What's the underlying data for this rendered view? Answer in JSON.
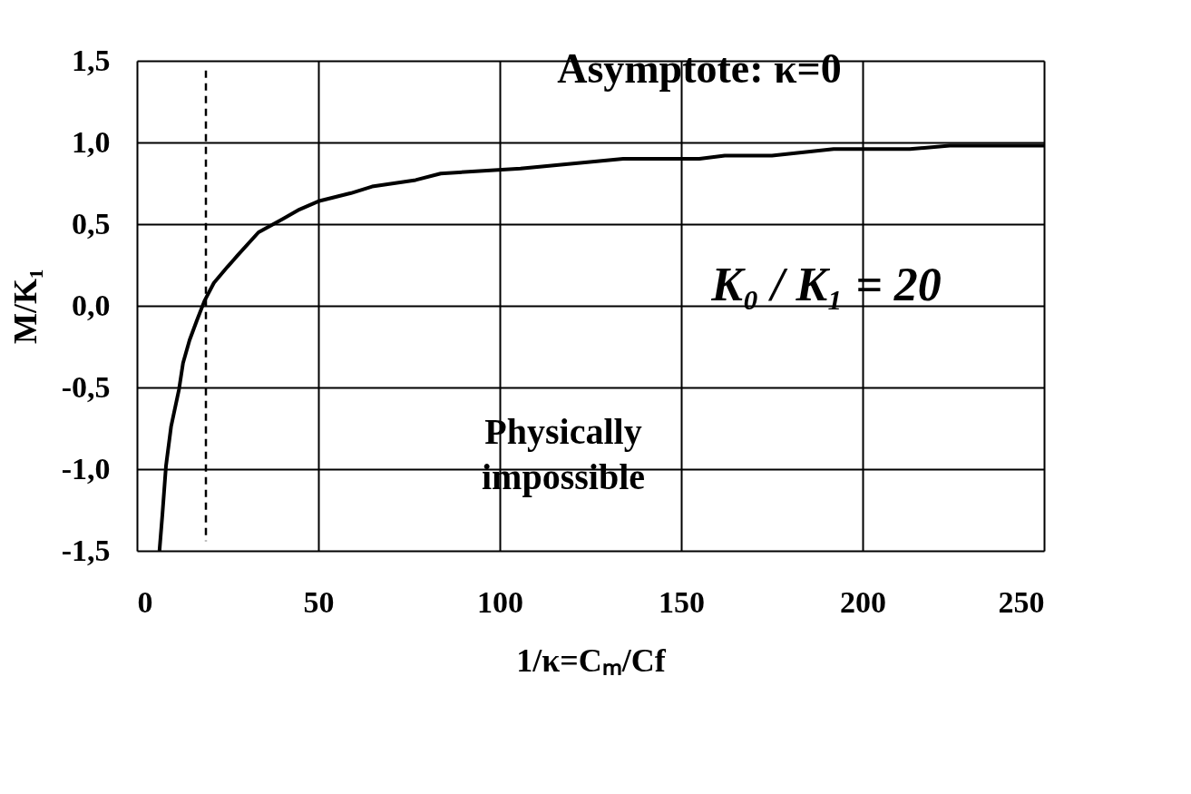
{
  "chart_data": {
    "type": "line",
    "xlabel": "1/κ=Cₘ/Cf",
    "ylabel": "M/K₁",
    "x": [
      6.2,
      7.0,
      8.0,
      9.4,
      11.6,
      12.7,
      14.5,
      16.5,
      18.6,
      21.2,
      25,
      27.8,
      33.5,
      40.1,
      44.8,
      50,
      59,
      64.8,
      76.8,
      83.7,
      105.7,
      134,
      155,
      162,
      175,
      192,
      213,
      224,
      250
    ],
    "series": [
      {
        "color": "#000000",
        "values": [
          -1.5,
          -1.28,
          -0.98,
          -0.74,
          -0.51,
          -0.35,
          -0.21,
          -0.09,
          0.03,
          0.14,
          0.24,
          0.31,
          0.45,
          0.53,
          0.59,
          0.64,
          0.69,
          0.73,
          0.77,
          0.81,
          0.84,
          0.9,
          0.9,
          0.92,
          0.92,
          0.96,
          0.96,
          0.98,
          0.98
        ]
      }
    ],
    "xlim": [
      0,
      250
    ],
    "xticks": [
      0,
      50,
      100,
      150,
      200,
      250
    ],
    "ylim": [
      -1.5,
      1.5
    ],
    "yticks": [
      {
        "value": -1.5,
        "label": "-1,5"
      },
      {
        "value": -1.0,
        "label": "-1,0"
      },
      {
        "value": -0.5,
        "label": "-0,5"
      },
      {
        "value": 0,
        "label": "0,0"
      },
      {
        "value": 0.5,
        "label": "0,5"
      },
      {
        "value": 1.0,
        "label": "1,0"
      },
      {
        "value": 1.5,
        "label": "1,5"
      }
    ],
    "grid": true,
    "marker": "none",
    "line_style": "solid",
    "ref_lines": [
      {
        "axis": "x",
        "value": 19,
        "color": "#000000",
        "line_style": "dashed"
      }
    ],
    "annotations": [
      "Asymptote: κ=0",
      "K₀ / K₁ = 20",
      "Physically impossible"
    ]
  }
}
